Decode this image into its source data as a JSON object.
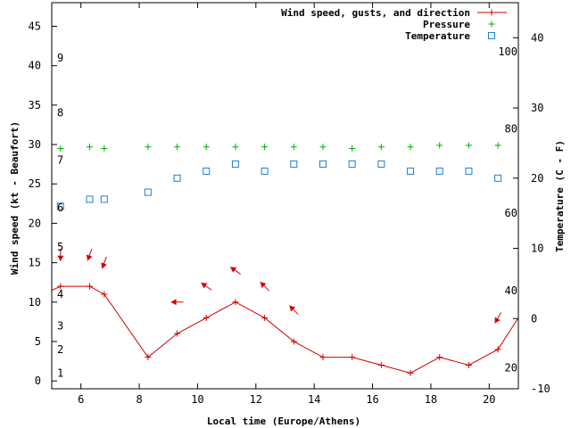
{
  "chart_data": {
    "type": "line",
    "x_axis": {
      "label": "Local time (Europe/Athens)",
      "range": [
        5.0,
        21.0
      ],
      "ticks": [
        6,
        8,
        10,
        12,
        14,
        16,
        18,
        20
      ]
    },
    "y_left": {
      "label": "Wind speed (kt - Beaufort)",
      "range": [
        -1,
        48
      ],
      "ticks": [
        0,
        5,
        10,
        15,
        20,
        25,
        30,
        35,
        40,
        45
      ]
    },
    "y_right": {
      "label": "Temperature (C - F)",
      "range": [
        -10,
        45
      ],
      "ticks": [
        -10,
        0,
        10,
        20,
        30,
        40
      ]
    },
    "beaufort_labels": [
      {
        "text": "1",
        "y": 1
      },
      {
        "text": "2",
        "y": 4
      },
      {
        "text": "3",
        "y": 7
      },
      {
        "text": "4",
        "y": 11
      },
      {
        "text": "5",
        "y": 17
      },
      {
        "text": "6",
        "y": 22
      },
      {
        "text": "7",
        "y": 28
      },
      {
        "text": "8",
        "y": 34
      },
      {
        "text": "9",
        "y": 41
      }
    ],
    "fahrenheit_labels": [
      {
        "text": "20",
        "y": -7
      },
      {
        "text": "40",
        "y": 4
      },
      {
        "text": "60",
        "y": 15
      },
      {
        "text": "80",
        "y": 27
      },
      {
        "text": "100",
        "y": 38
      }
    ],
    "legend": [
      {
        "label": "Wind speed, gusts, and direction",
        "color": "#d00000",
        "symbol": "line-plus"
      },
      {
        "label": "Pressure",
        "color": "#00b000",
        "symbol": "plus"
      },
      {
        "label": "Temperature",
        "color": "#1e7fd0",
        "symbol": "square"
      }
    ],
    "series": [
      {
        "name": "Wind speed, gusts, and direction",
        "axis": "left",
        "x": [
          5,
          5.3,
          6.3,
          6.8,
          8.3,
          9.3,
          10.3,
          11.3,
          12.3,
          13.3,
          14.3,
          15.3,
          16.3,
          17.3,
          18.3,
          19.3,
          20.3,
          21
        ],
        "y": [
          11.5,
          12,
          12,
          11,
          3,
          6,
          8,
          10,
          8,
          5,
          3,
          3,
          2,
          1,
          3,
          2,
          4,
          8
        ]
      },
      {
        "name": "Pressure",
        "axis": "left",
        "x": [
          5.3,
          6.3,
          6.8,
          8.3,
          9.3,
          10.3,
          11.3,
          12.3,
          13.3,
          14.3,
          15.3,
          16.3,
          17.3,
          18.3,
          19.3,
          20.3
        ],
        "y": [
          29.5,
          29.7,
          29.5,
          29.7,
          29.7,
          29.7,
          29.7,
          29.7,
          29.7,
          29.7,
          29.5,
          29.7,
          29.7,
          29.9,
          29.9,
          29.9
        ]
      },
      {
        "name": "Temperature",
        "axis": "right",
        "x": [
          5.3,
          6.3,
          6.8,
          8.3,
          9.3,
          10.3,
          11.3,
          12.3,
          13.3,
          14.3,
          15.3,
          16.3,
          17.3,
          18.3,
          19.3,
          20.3
        ],
        "y": [
          16,
          17,
          17,
          18,
          20,
          21,
          22,
          21,
          22,
          22,
          22,
          22,
          21,
          21,
          21,
          20
        ]
      }
    ],
    "wind_directions": [
      {
        "x": 5.3,
        "y": 16,
        "angle_deg": 90
      },
      {
        "x": 6.3,
        "y": 16,
        "angle_deg": 110
      },
      {
        "x": 6.8,
        "y": 15,
        "angle_deg": 110
      },
      {
        "x": 9.3,
        "y": 10,
        "angle_deg": 180
      },
      {
        "x": 10.3,
        "y": 12,
        "angle_deg": 215
      },
      {
        "x": 11.3,
        "y": 14,
        "angle_deg": 215
      },
      {
        "x": 12.3,
        "y": 12,
        "angle_deg": 225
      },
      {
        "x": 13.3,
        "y": 9,
        "angle_deg": 225
      },
      {
        "x": 20.3,
        "y": 8,
        "angle_deg": 120
      }
    ]
  }
}
